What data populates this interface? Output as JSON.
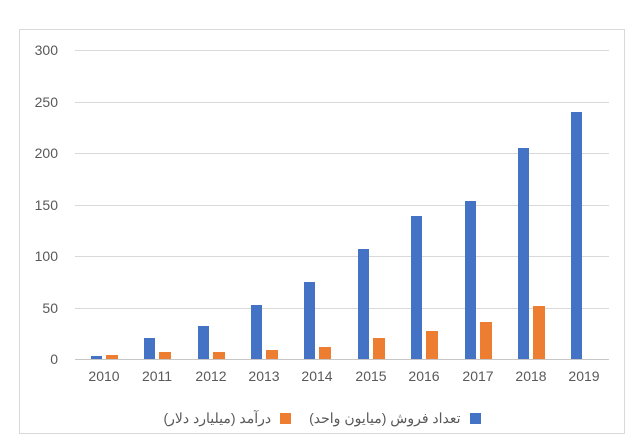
{
  "chart_data": {
    "type": "bar",
    "categories": [
      "2010",
      "2011",
      "2012",
      "2013",
      "2014",
      "2015",
      "2016",
      "2017",
      "2018",
      "2019"
    ],
    "series": [
      {
        "name": "تعداد فروش (میایون واحد)",
        "color": "#4472c4",
        "values": [
          3,
          20,
          32,
          52,
          75,
          107,
          139,
          153,
          205,
          240
        ]
      },
      {
        "name": "درآمد (میلیارد دلار)",
        "color": "#ed7d31",
        "values": [
          4,
          7,
          7,
          9,
          12,
          20,
          27,
          36,
          51,
          null
        ]
      }
    ],
    "title": "",
    "xlabel": "",
    "ylabel": "",
    "ylim": [
      0,
      300
    ],
    "yticks": [
      0,
      50,
      100,
      150,
      200,
      250,
      300
    ],
    "grid": true,
    "legend_position": "bottom"
  },
  "colors": {
    "gridline": "#d9d9d9",
    "zero_axis": "#c6c6c6",
    "axis_text": "#595959",
    "frame_border": "#d9d9d9",
    "background": "#ffffff",
    "series_blue": "#4472c4",
    "series_orange": "#ed7d31"
  }
}
